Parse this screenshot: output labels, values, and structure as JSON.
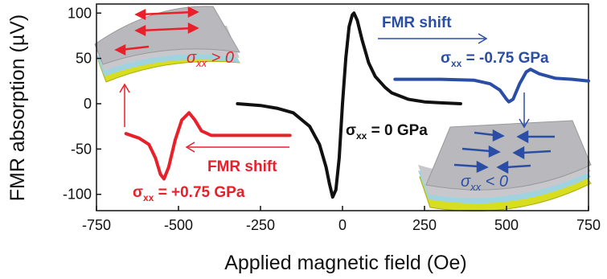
{
  "chart_data": {
    "type": "line",
    "xlabel": "Applied magnetic field (Oe)",
    "ylabel": "FMR absorption (µV)",
    "xlim": [
      -750,
      750
    ],
    "ylim": [
      -118,
      110
    ],
    "xticks": [
      -750,
      -500,
      -250,
      0,
      250,
      500,
      750
    ],
    "yticks": [
      -100,
      -50,
      0,
      50,
      100
    ],
    "series": [
      {
        "name": "σxx = 0 GPa",
        "color": "#111111",
        "x": [
          -320,
          -250,
          -200,
          -150,
          -100,
          -70,
          -50,
          -40,
          -30,
          -20,
          -10,
          0,
          10,
          20,
          30,
          35,
          45,
          60,
          80,
          100,
          130,
          150,
          200,
          250,
          300,
          360
        ],
        "values": [
          0,
          -2,
          -5,
          -10,
          -25,
          -45,
          -70,
          -88,
          -103,
          -95,
          -60,
          0,
          50,
          85,
          98,
          100,
          92,
          70,
          45,
          30,
          18,
          12,
          5,
          2,
          1,
          0
        ]
      },
      {
        "name": "σxx = +0.75 GPa",
        "color": "#e8202a",
        "x": [
          -660,
          -620,
          -590,
          -570,
          -555,
          -544,
          -530,
          -510,
          -490,
          -468,
          -450,
          -430,
          -400,
          -300,
          -160
        ],
        "values": [
          -33,
          -38,
          -45,
          -60,
          -78,
          -83,
          -70,
          -40,
          -18,
          -10,
          -18,
          -30,
          -35,
          -35,
          -35
        ]
      },
      {
        "name": "σxx = -0.75 GPa",
        "color": "#2a4ea6",
        "x": [
          160,
          300,
          400,
          450,
          480,
          500,
          507,
          520,
          540,
          560,
          573,
          600,
          650,
          700,
          750
        ],
        "values": [
          27,
          27,
          26,
          22,
          15,
          5,
          2,
          5,
          22,
          35,
          38,
          33,
          28,
          27,
          25
        ]
      }
    ],
    "annotations": {
      "shift_top": "FMR shift",
      "shift_bottom": "FMR shift",
      "sigma_symbol": "σ",
      "sigma_sub": "xx",
      "blue_label": " = -0.75 GPa",
      "black_label": " = 0 GPa",
      "red_label": " = +0.75 GPa",
      "inset_positive": " > 0",
      "inset_negative": " < 0"
    }
  }
}
